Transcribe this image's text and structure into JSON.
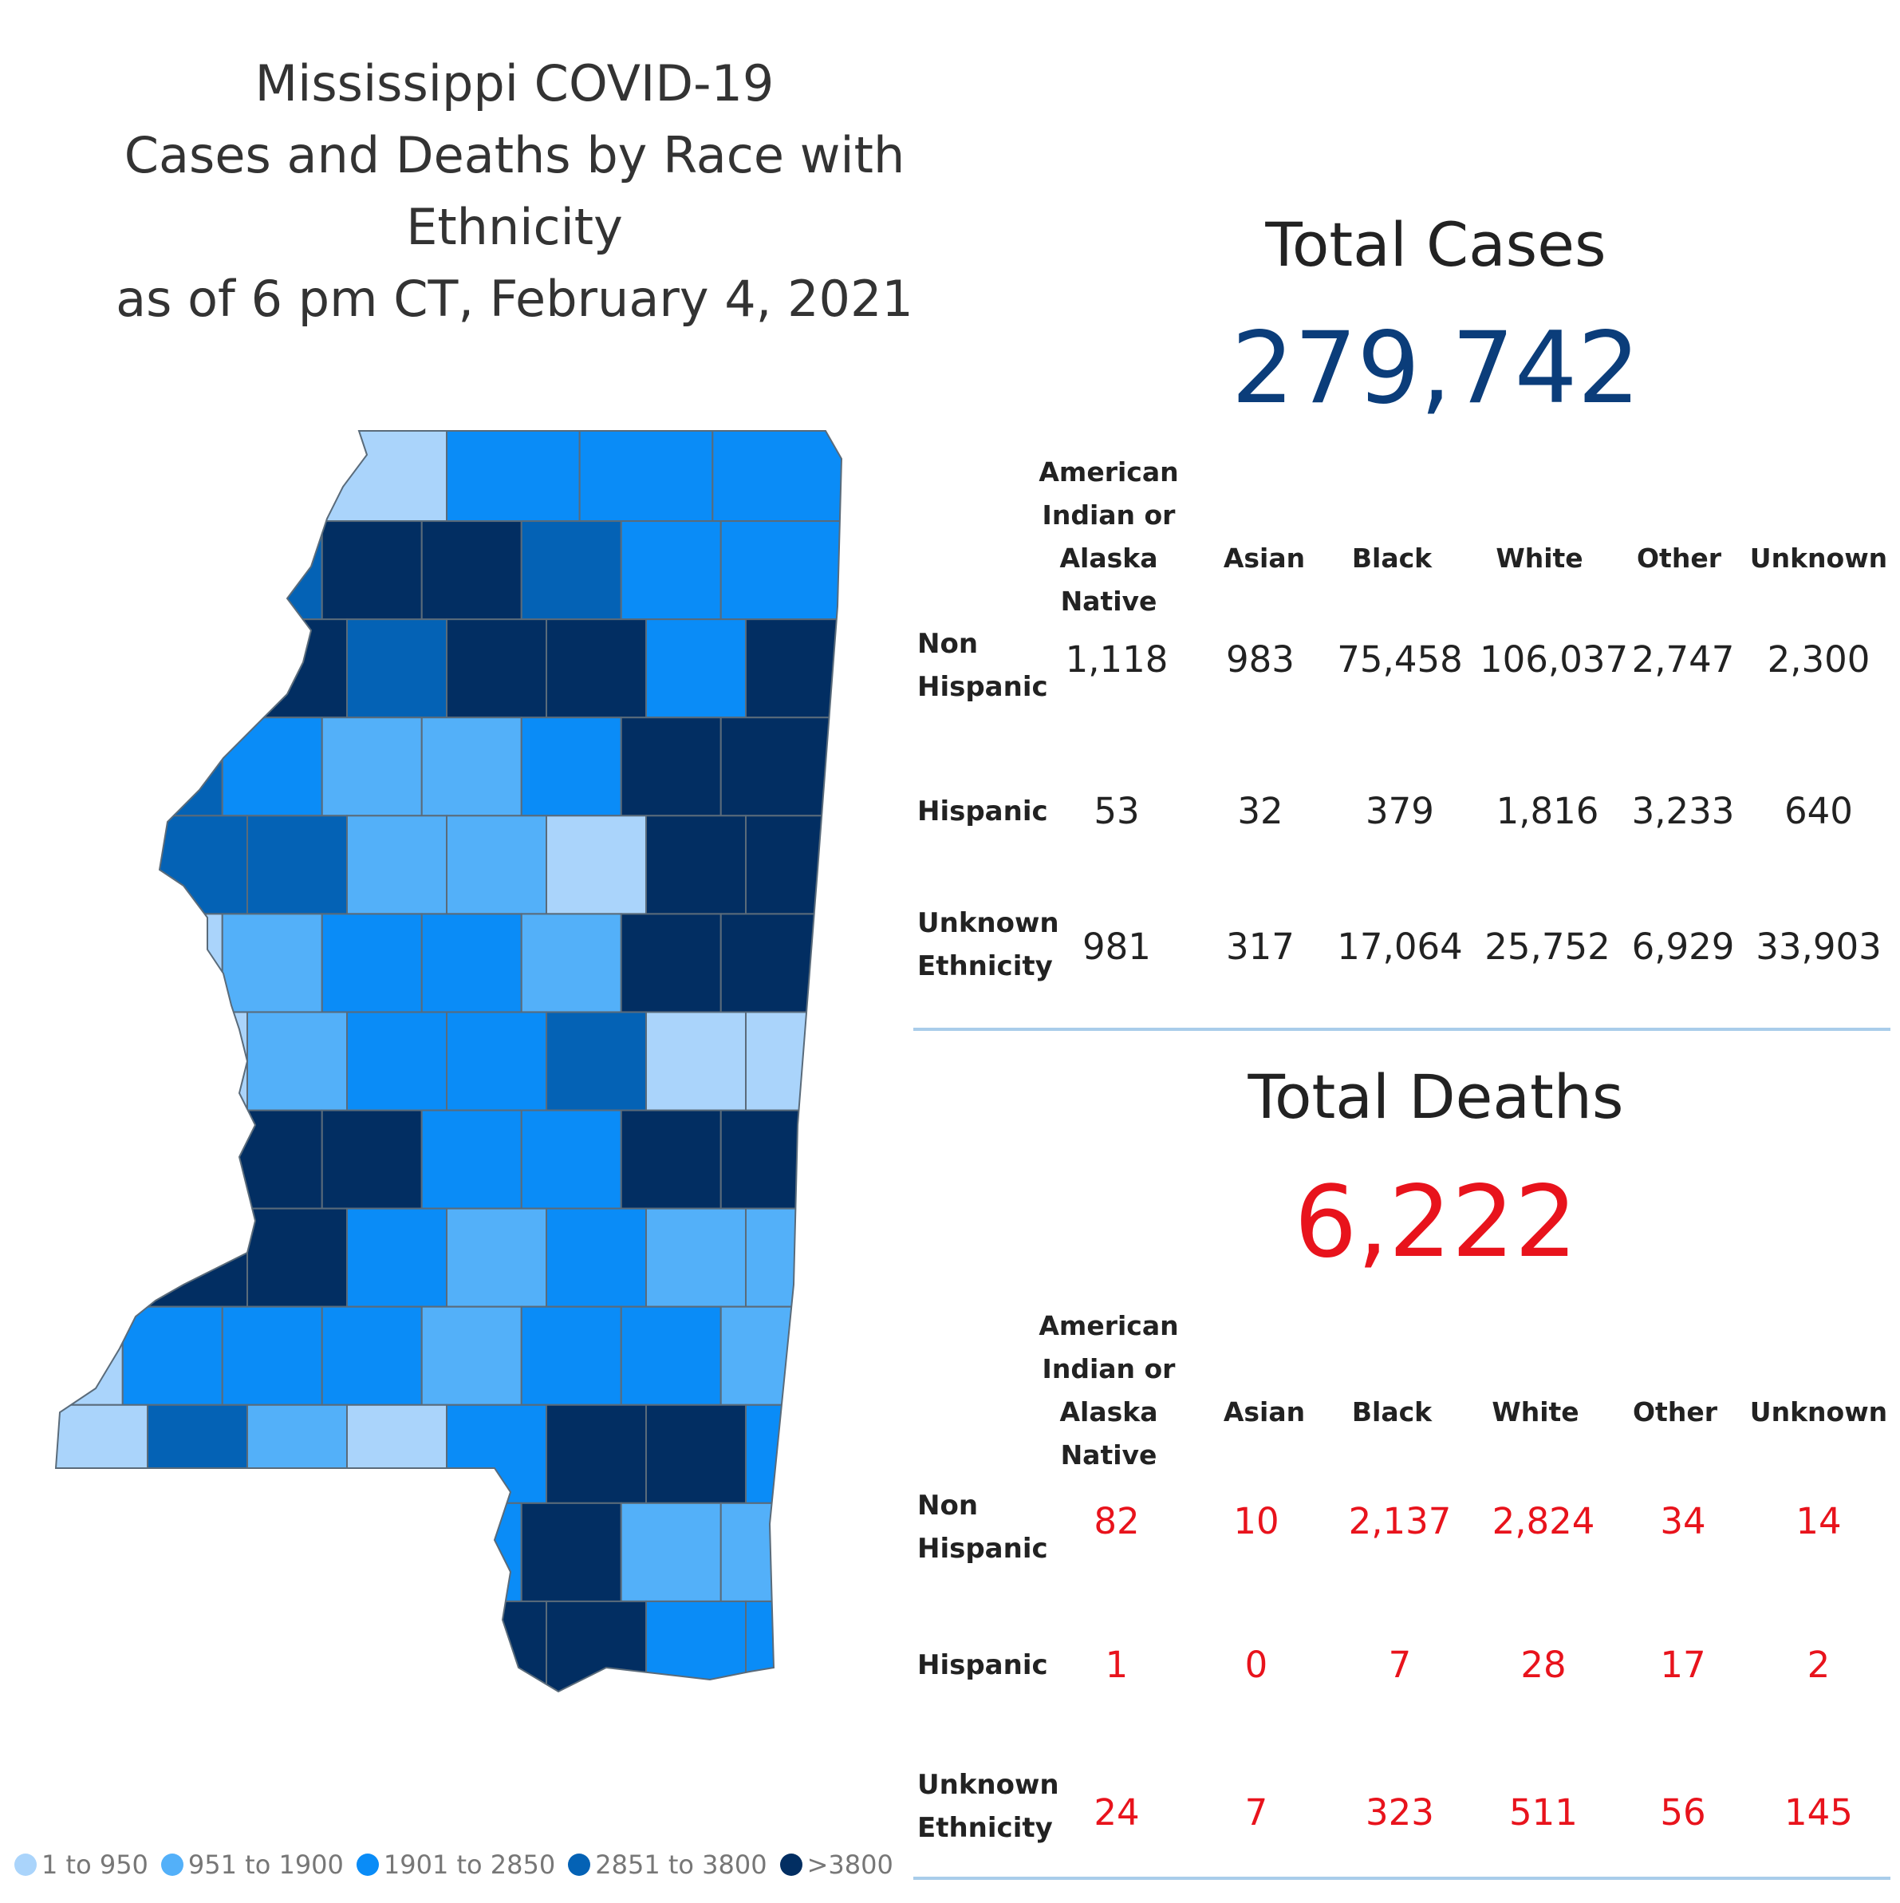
{
  "title": {
    "line1": "Mississippi COVID-19",
    "line2": "Cases and Deaths by Race with Ethnicity",
    "line3": "as of 6 pm CT, February 4, 2021"
  },
  "legend": {
    "items": [
      {
        "label": "1 to 950",
        "color": "#aad4fb"
      },
      {
        "label": "951 to 1900",
        "color": "#53b0f9"
      },
      {
        "label": "1901 to 2850",
        "color": "#0a8cf7"
      },
      {
        "label": "2851 to 3800",
        "color": "#0462b5"
      },
      {
        "label": ">3800",
        "color": "#022e62"
      }
    ]
  },
  "cases": {
    "title": "Total Cases",
    "total": "279,742",
    "columns": [
      "American\nIndian or\nAlaska Native",
      "Asian",
      "Black",
      "White",
      "Other",
      "Unknown"
    ],
    "rows": [
      {
        "label": "Non\nHispanic",
        "values": [
          "1,118",
          "983",
          "75,458",
          "106,037",
          "2,747",
          "2,300"
        ]
      },
      {
        "label": "Hispanic",
        "values": [
          "53",
          "32",
          "379",
          "1,816",
          "3,233",
          "640"
        ]
      },
      {
        "label": "Unknown\nEthnicity",
        "values": [
          "981",
          "317",
          "17,064",
          "25,752",
          "6,929",
          "33,903"
        ]
      }
    ]
  },
  "deaths": {
    "title": "Total Deaths",
    "total": "6,222",
    "columns": [
      "American\nIndian or\nAlaska Native",
      "Asian",
      "Black",
      "White",
      "Other",
      "Unknown"
    ],
    "rows": [
      {
        "label": "Non\nHispanic",
        "values": [
          "82",
          "10",
          "2,137",
          "2,824",
          "34",
          "14"
        ]
      },
      {
        "label": "Hispanic",
        "values": [
          "1",
          "0",
          "7",
          "28",
          "17",
          "2"
        ]
      },
      {
        "label": "Unknown\nEthnicity",
        "values": [
          "24",
          "7",
          "323",
          "511",
          "56",
          "145"
        ]
      }
    ]
  },
  "map": {
    "county_levels": [
      4,
      3,
      0,
      2,
      2,
      2,
      1,
      3,
      3,
      4,
      4,
      3,
      2,
      2,
      2,
      4,
      4,
      3,
      4,
      4,
      2,
      4,
      4,
      3,
      2,
      1,
      1,
      2,
      4,
      4,
      4,
      3,
      3,
      1,
      1,
      0,
      4,
      4,
      4,
      0,
      1,
      2,
      2,
      1,
      4,
      4,
      0,
      0,
      1,
      2,
      2,
      3,
      0,
      0,
      0,
      2,
      4,
      4,
      2,
      2,
      4,
      4,
      4,
      4,
      4,
      2,
      1,
      2,
      1,
      1,
      0,
      2,
      2,
      2,
      1,
      2,
      2,
      1,
      0,
      3,
      1,
      0,
      2,
      4,
      4,
      2,
      0,
      1,
      3,
      1,
      2,
      4,
      1,
      1,
      3,
      3,
      4,
      1,
      4,
      4,
      2,
      2
    ]
  }
}
